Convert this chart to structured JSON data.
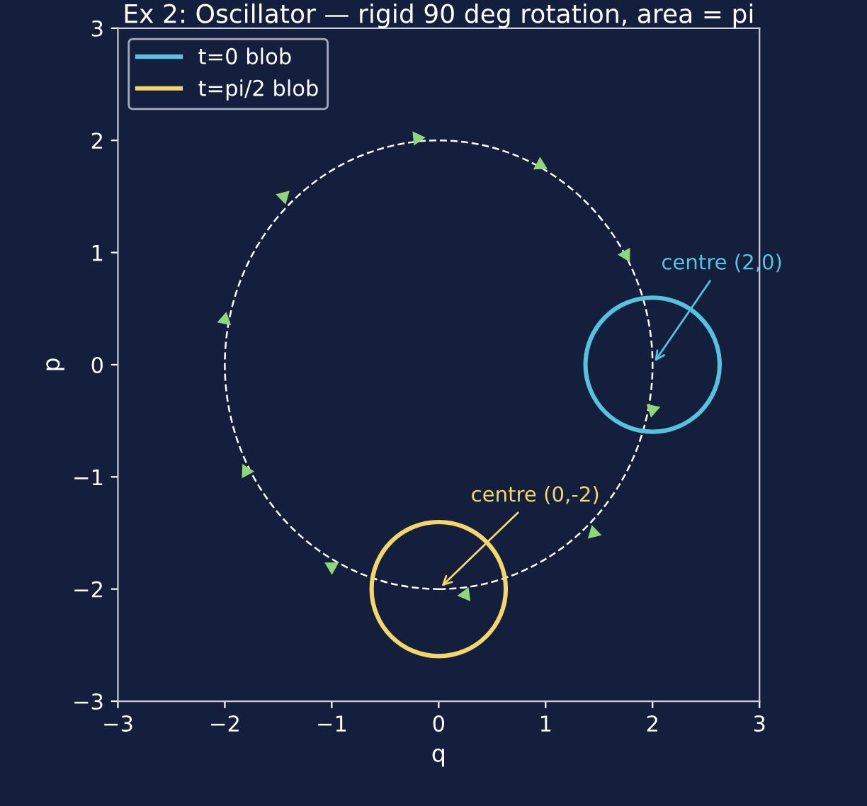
{
  "chart_data": {
    "type": "bubble",
    "title": "Ex 2: Oscillator — rigid 90 deg rotation, area = pi",
    "xlabel": "q",
    "ylabel": "p",
    "xlim": [
      -3,
      3
    ],
    "ylim": [
      -3,
      3
    ],
    "xticks": [
      {
        "value": -3,
        "label": "−3"
      },
      {
        "value": -2,
        "label": "−2"
      },
      {
        "value": -1,
        "label": "−1"
      },
      0,
      1,
      2,
      3
    ],
    "yticks": [
      {
        "value": -3,
        "label": "−3"
      },
      {
        "value": -2,
        "label": "−2"
      },
      {
        "value": -1,
        "label": "−1"
      },
      0,
      1,
      2,
      3
    ],
    "grid": false,
    "legend": "top left",
    "series": [
      {
        "name": "t=0 blob",
        "color": "#56c3de",
        "x": [
          2
        ],
        "values": [
          0
        ],
        "sizes": [
          1
        ]
      },
      {
        "name": "t=pi/2 blob",
        "color": "#f5d66b",
        "x": [
          0
        ],
        "values": [
          -2
        ],
        "sizes": [
          1
        ]
      },
      {
        "type": "scatter",
        "marker": "triangle",
        "color": "#8fd67a",
        "x": [
          -0.2,
          0.95,
          1.75,
          2.0,
          1.45,
          0.25,
          -1.0,
          -1.8,
          -2.0,
          -1.45
        ],
        "values": [
          2.02,
          1.78,
          0.98,
          -0.4,
          -1.5,
          -2.05,
          -1.8,
          -0.95,
          0.4,
          1.5
        ]
      }
    ],
    "annotations": [
      {
        "text": "centre (2,0)",
        "x": 2,
        "y": 0
      },
      {
        "text": "centre (0,-2)",
        "x": 0,
        "y": -2
      }
    ]
  }
}
